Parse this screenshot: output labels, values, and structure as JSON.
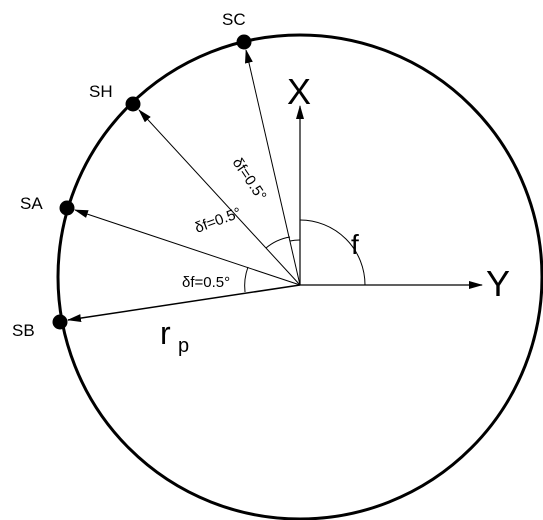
{
  "points": [
    {
      "label": "SC"
    },
    {
      "label": "SH"
    },
    {
      "label": "SA"
    },
    {
      "label": "SB"
    }
  ],
  "axes": {
    "x": "X",
    "y": "Y"
  },
  "angle_label": "f",
  "radius_label": {
    "main": "r",
    "subscript": "p"
  },
  "step_labels": [
    "δf=0.5°",
    "δf=0.5°",
    "δf=0.5°"
  ]
}
